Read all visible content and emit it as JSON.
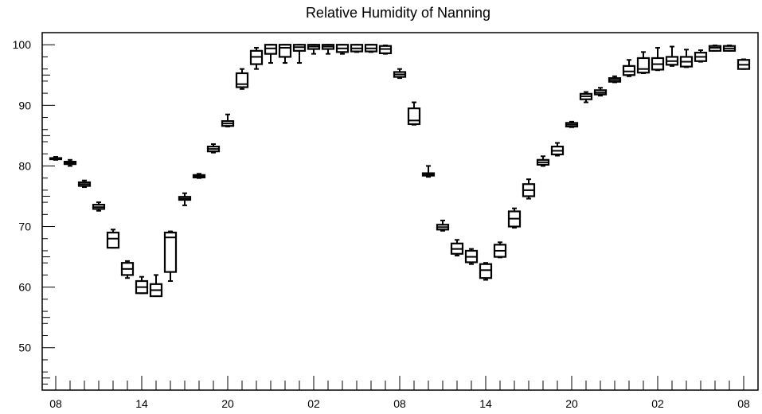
{
  "chart_data": {
    "type": "boxplot",
    "title": "Relative Humidity of Nanning",
    "xlabel": "",
    "ylabel": "",
    "ylim": [
      43,
      102
    ],
    "yticks": [
      50,
      60,
      70,
      80,
      90,
      100
    ],
    "y_tick_labels": [
      "50",
      "60",
      "70",
      "80",
      "90",
      "100"
    ],
    "x_tick_labels": [
      "08",
      "14",
      "20",
      "02",
      "08",
      "14",
      "20",
      "02",
      "08"
    ],
    "x_tick_hours": [
      0,
      6,
      12,
      18,
      24,
      30,
      36,
      42,
      48
    ],
    "grid": false,
    "colors": {
      "line": "#000000",
      "background": "#ffffff"
    },
    "boxes": [
      {
        "hour": 0,
        "min": 81.0,
        "q1": 81.1,
        "median": 81.2,
        "q3": 81.3,
        "max": 81.5
      },
      {
        "hour": 1,
        "min": 80.0,
        "q1": 80.3,
        "median": 80.5,
        "q3": 80.7,
        "max": 81.0
      },
      {
        "hour": 2,
        "min": 76.5,
        "q1": 76.7,
        "median": 77.0,
        "q3": 77.3,
        "max": 77.6
      },
      {
        "hour": 3,
        "min": 72.6,
        "q1": 72.9,
        "median": 73.2,
        "q3": 73.6,
        "max": 74.0
      },
      {
        "hour": 4,
        "min": 66.5,
        "q1": 66.5,
        "median": 68.0,
        "q3": 69.0,
        "max": 69.5
      },
      {
        "hour": 5,
        "min": 61.5,
        "q1": 62.0,
        "median": 63.0,
        "q3": 64.0,
        "max": 64.3
      },
      {
        "hour": 6,
        "min": 59.0,
        "q1": 59.0,
        "median": 60.0,
        "q3": 61.0,
        "max": 61.7
      },
      {
        "hour": 7,
        "min": 58.5,
        "q1": 58.5,
        "median": 59.5,
        "q3": 60.5,
        "max": 62.0
      },
      {
        "hour": 8,
        "min": 61.0,
        "q1": 62.5,
        "median": 68.2,
        "q3": 69.0,
        "max": 69.2
      },
      {
        "hour": 9,
        "min": 73.5,
        "q1": 74.4,
        "median": 74.6,
        "q3": 74.9,
        "max": 75.5
      },
      {
        "hour": 10,
        "min": 78.0,
        "q1": 78.1,
        "median": 78.3,
        "q3": 78.5,
        "max": 78.7
      },
      {
        "hour": 11,
        "min": 82.2,
        "q1": 82.4,
        "median": 82.8,
        "q3": 83.2,
        "max": 83.6
      },
      {
        "hour": 12,
        "min": 86.5,
        "q1": 86.6,
        "median": 87.0,
        "q3": 87.4,
        "max": 88.5
      },
      {
        "hour": 13,
        "min": 92.7,
        "q1": 93.0,
        "median": 93.5,
        "q3": 95.3,
        "max": 96.0
      },
      {
        "hour": 14,
        "min": 96.0,
        "q1": 96.8,
        "median": 98.0,
        "q3": 99.0,
        "max": 99.5
      },
      {
        "hour": 15,
        "min": 97.0,
        "q1": 98.5,
        "median": 99.4,
        "q3": 100.0,
        "max": 100.0
      },
      {
        "hour": 16,
        "min": 97.0,
        "q1": 98.0,
        "median": 99.5,
        "q3": 100.0,
        "max": 100.0
      },
      {
        "hour": 17,
        "min": 97.0,
        "q1": 99.0,
        "median": 99.6,
        "q3": 100.0,
        "max": 100.0
      },
      {
        "hour": 18,
        "min": 98.5,
        "q1": 99.3,
        "median": 99.7,
        "q3": 100.0,
        "max": 100.0
      },
      {
        "hour": 19,
        "min": 98.5,
        "q1": 99.3,
        "median": 99.7,
        "q3": 100.0,
        "max": 100.0
      },
      {
        "hour": 20,
        "min": 98.5,
        "q1": 98.8,
        "median": 99.4,
        "q3": 100.0,
        "max": 100.0
      },
      {
        "hour": 21,
        "min": 98.8,
        "q1": 98.9,
        "median": 99.4,
        "q3": 100.0,
        "max": 100.0
      },
      {
        "hour": 22,
        "min": 98.8,
        "q1": 98.9,
        "median": 99.4,
        "q3": 100.0,
        "max": 100.0
      },
      {
        "hour": 23,
        "min": 98.5,
        "q1": 98.6,
        "median": 99.3,
        "q3": 99.8,
        "max": 99.9
      },
      {
        "hour": 24,
        "min": 94.5,
        "q1": 94.7,
        "median": 95.1,
        "q3": 95.5,
        "max": 96.0
      },
      {
        "hour": 25,
        "min": 86.8,
        "q1": 86.9,
        "median": 87.5,
        "q3": 89.5,
        "max": 90.5
      },
      {
        "hour": 26,
        "min": 78.2,
        "q1": 78.4,
        "median": 78.6,
        "q3": 78.8,
        "max": 80.0
      },
      {
        "hour": 27,
        "min": 69.3,
        "q1": 69.5,
        "median": 69.9,
        "q3": 70.3,
        "max": 71.0
      },
      {
        "hour": 28,
        "min": 65.2,
        "q1": 65.5,
        "median": 66.3,
        "q3": 67.2,
        "max": 67.8
      },
      {
        "hour": 29,
        "min": 63.8,
        "q1": 64.1,
        "median": 65.0,
        "q3": 66.0,
        "max": 66.3
      },
      {
        "hour": 30,
        "min": 61.2,
        "q1": 61.5,
        "median": 62.8,
        "q3": 63.8,
        "max": 64.0
      },
      {
        "hour": 31,
        "min": 64.9,
        "q1": 65.0,
        "median": 66.0,
        "q3": 67.0,
        "max": 67.4
      },
      {
        "hour": 32,
        "min": 69.8,
        "q1": 70.0,
        "median": 71.3,
        "q3": 72.5,
        "max": 73.0
      },
      {
        "hour": 33,
        "min": 74.6,
        "q1": 75.0,
        "median": 76.0,
        "q3": 77.0,
        "max": 77.8
      },
      {
        "hour": 34,
        "min": 80.0,
        "q1": 80.2,
        "median": 80.6,
        "q3": 81.0,
        "max": 81.6
      },
      {
        "hour": 35,
        "min": 81.7,
        "q1": 81.9,
        "median": 82.5,
        "q3": 83.2,
        "max": 83.8
      },
      {
        "hour": 36,
        "min": 86.4,
        "q1": 86.5,
        "median": 86.8,
        "q3": 87.1,
        "max": 87.3
      },
      {
        "hour": 37,
        "min": 90.5,
        "q1": 91.0,
        "median": 91.5,
        "q3": 91.9,
        "max": 92.2
      },
      {
        "hour": 38,
        "min": 91.6,
        "q1": 91.8,
        "median": 92.1,
        "q3": 92.5,
        "max": 92.9
      },
      {
        "hour": 39,
        "min": 93.8,
        "q1": 93.9,
        "median": 94.2,
        "q3": 94.5,
        "max": 94.8
      },
      {
        "hour": 40,
        "min": 94.8,
        "q1": 95.0,
        "median": 95.6,
        "q3": 96.5,
        "max": 97.5
      },
      {
        "hour": 41,
        "min": 95.3,
        "q1": 95.4,
        "median": 96.0,
        "q3": 97.8,
        "max": 98.8
      },
      {
        "hour": 42,
        "min": 95.8,
        "q1": 95.9,
        "median": 96.8,
        "q3": 97.8,
        "max": 99.5
      },
      {
        "hour": 43,
        "min": 96.5,
        "q1": 96.7,
        "median": 97.3,
        "q3": 98.0,
        "max": 99.7
      },
      {
        "hour": 44,
        "min": 96.3,
        "q1": 96.4,
        "median": 97.2,
        "q3": 98.0,
        "max": 99.2
      },
      {
        "hour": 45,
        "min": 97.2,
        "q1": 97.3,
        "median": 98.0,
        "q3": 98.7,
        "max": 99.1
      },
      {
        "hour": 46,
        "min": 99.0,
        "q1": 99.0,
        "median": 99.5,
        "q3": 99.8,
        "max": 99.9
      },
      {
        "hour": 47,
        "min": 99.0,
        "q1": 99.0,
        "median": 99.4,
        "q3": 99.8,
        "max": 99.9
      },
      {
        "hour": 48,
        "min": 96.0,
        "q1": 96.0,
        "median": 96.7,
        "q3": 97.5,
        "max": 97.6
      }
    ]
  }
}
